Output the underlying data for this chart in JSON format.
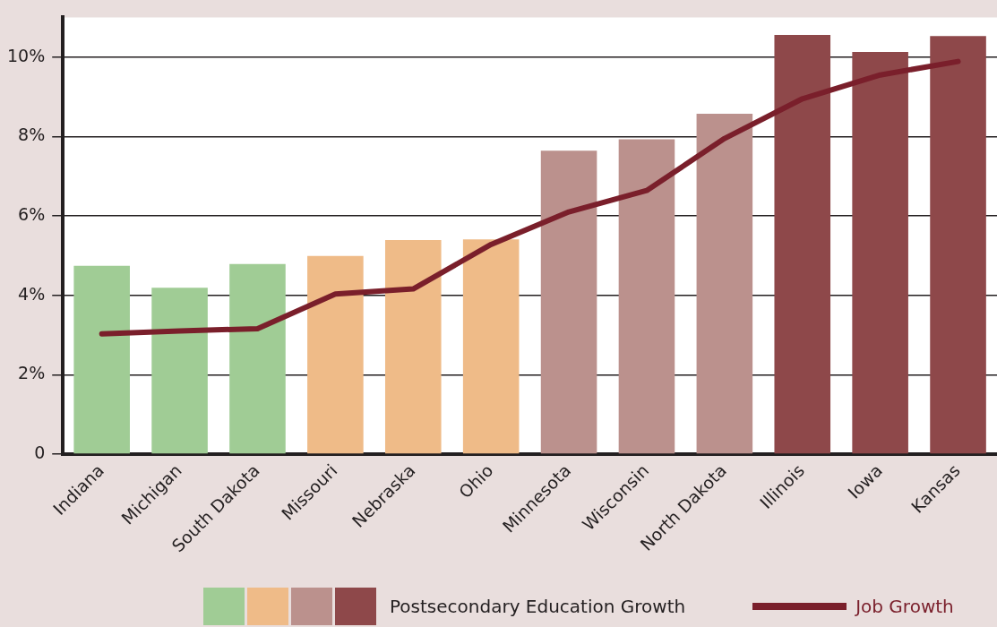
{
  "chart_data": {
    "type": "bar",
    "categories": [
      "Indiana",
      "Michigan",
      "South Dakota",
      "Missouri",
      "Nebraska",
      "Ohio",
      "Minnesota",
      "Wisconsin",
      "North Dakota",
      "Illinois",
      "Iowa",
      "Kansas"
    ],
    "series": [
      {
        "name": "Postsecondary Education Growth",
        "colors": [
          "#a0cc95",
          "#a0cc95",
          "#a0cc95",
          "#efbb88",
          "#efbb88",
          "#efbb88",
          "#bb918d",
          "#bb918d",
          "#bb918d",
          "#8e484a",
          "#8e484a",
          "#8e484a"
        ],
        "values": [
          4.74,
          4.19,
          4.79,
          4.99,
          5.39,
          5.41,
          7.64,
          7.93,
          8.57,
          10.56,
          10.13,
          10.53
        ]
      },
      {
        "name": "Job Growth",
        "type": "line",
        "color": "#7a1f2b",
        "values": [
          3.03,
          3.1,
          3.16,
          4.03,
          4.16,
          5.28,
          6.1,
          6.64,
          7.95,
          8.95,
          9.55,
          9.89
        ]
      }
    ],
    "ylim": [
      0,
      11
    ],
    "yticks": [
      {
        "value": 0,
        "label": "0"
      },
      {
        "value": 2,
        "label": "2%"
      },
      {
        "value": 4,
        "label": "4%"
      },
      {
        "value": 6,
        "label": "6%"
      },
      {
        "value": 8,
        "label": "8%"
      },
      {
        "value": 10,
        "label": "10%"
      }
    ],
    "grid": "y",
    "legend": "bottom",
    "marker": "none",
    "line_style": "solid"
  }
}
